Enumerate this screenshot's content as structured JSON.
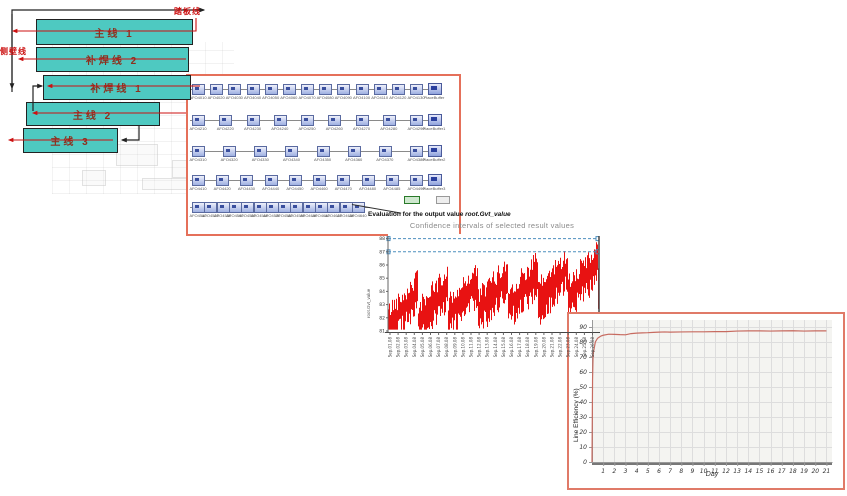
{
  "layout_diagram": {
    "label_top_right": "踏板线",
    "label_left": "侧壁线",
    "bar_color": "#4ec9c1",
    "arrow_red": "#cc1111",
    "arrow_black": "#222222",
    "bars": [
      {
        "label": "主线 1"
      },
      {
        "label": "补焊线 2"
      },
      {
        "label": "补焊线 1"
      },
      {
        "label": "主线 2"
      },
      {
        "label": "主线 3"
      }
    ]
  },
  "simulation_panel": {
    "border_color": "#e5705a",
    "evaluation_prefix": "Evaluation for the output value ",
    "evaluation_value": "root.Gvt_value",
    "rows": [
      {
        "stations": [
          "AFO4010",
          "AFO4020",
          "AFO4030",
          "AFO4040",
          "AFO4050",
          "AFO4060",
          "AFO4070",
          "AFO4080",
          "AFO4090",
          "AFO4100",
          "AFO4110",
          "AFO4120",
          "AFO4130"
        ],
        "buffer": "PlaceBuffer"
      },
      {
        "stations": [
          "AFO4210",
          "AFO4220",
          "AFO4230",
          "AFO4240",
          "AFO4250",
          "AFO4260",
          "AFO4270",
          "AFO4280",
          "AFO4290"
        ],
        "buffer": "PlaceBuffer1"
      },
      {
        "stations": [
          "AFO4310",
          "AFO4320",
          "AFO4330",
          "AFO4340",
          "AFO4350",
          "AFO4360",
          "AFO4370",
          "AFO4380"
        ],
        "buffer": "PlaceBuffer2"
      },
      {
        "stations": [
          "AFO4410",
          "AFO4420",
          "AFO4430",
          "AFO4440",
          "AFO4450",
          "AFO4460",
          "AFO4470",
          "AFO4480",
          "AFO4485",
          "AFO4490"
        ],
        "buffer": "PlaceBuffer3"
      },
      {
        "stations": [
          "AFO4510",
          "AFO4520",
          "AFO4530",
          "AFO4540",
          "AFO4550",
          "AFO4560",
          "AFO4570",
          "AFO4580",
          "AFO4590",
          "AFO4600",
          "AFO4610",
          "AFO4620",
          "AFO4630",
          "AFO4640"
        ],
        "buffer": null
      }
    ]
  },
  "chart_data": [
    {
      "type": "line",
      "title": "Confidence intervals of selected result values",
      "ylabel": "root.Gvt_value",
      "xlabel": "",
      "ylim": [
        81,
        88.5
      ],
      "yticks": [
        81,
        82,
        83,
        84,
        85,
        86,
        87,
        88
      ],
      "confidence_bounds": {
        "lower": 87,
        "upper": 88,
        "style": "dashed",
        "color": "#4d8fbe"
      },
      "series": [
        {
          "name": "root.Gvt_value",
          "color": "#e81212",
          "trend": {
            "start_mean": 82.6,
            "end_mean": 85.2,
            "cycle_period_days": 3,
            "cycle_amplitude": 2.2,
            "noise_band_low": 1.6,
            "noise_band_high": 1.4,
            "span_days": 21
          }
        }
      ],
      "x_tick_labels": [
        "Sep.01.08",
        "Sep.02.08",
        "Sep.03.08",
        "Sep.04.08",
        "Sep.05.08",
        "Sep.06.08",
        "Sep.07.08",
        "Sep.08.08",
        "Sep.09.08",
        "Sep.10.08",
        "Sep.11.08",
        "Sep.12.08",
        "Sep.13.08",
        "Sep.14.08",
        "Sep.15.08",
        "Sep.16.08",
        "Sep.17.08",
        "Sep.18.08",
        "Sep.19.08",
        "Sep.20.08",
        "Sep.21.08",
        "Sep.22.08",
        "Sep.23.08",
        "Sep.24.08",
        "Sep.25.08",
        "Sep.26.08"
      ],
      "grid": false,
      "legend": "none"
    },
    {
      "type": "line",
      "title": "",
      "xlabel": "Day",
      "ylabel": "Line Efficiency (%)",
      "xlim": [
        0,
        21.5
      ],
      "ylim": [
        0,
        95
      ],
      "xticks": [
        1,
        2,
        3,
        4,
        5,
        6,
        7,
        8,
        9,
        10,
        11,
        12,
        13,
        14,
        15,
        16,
        17,
        18,
        19,
        20,
        21
      ],
      "yticks": [
        0,
        10,
        20,
        30,
        40,
        50,
        60,
        70,
        80,
        90
      ],
      "grid": true,
      "plot_bg": "#f4f4f1",
      "border_color": "#e07a68",
      "series": [
        {
          "name": "Line Efficiency",
          "color": "#c76b60",
          "points": [
            [
              0,
              0
            ],
            [
              0.05,
              55
            ],
            [
              0.1,
              72
            ],
            [
              0.2,
              76
            ],
            [
              0.3,
              80
            ],
            [
              0.5,
              82.5
            ],
            [
              0.8,
              84
            ],
            [
              1,
              84.5
            ],
            [
              1.5,
              85.2
            ],
            [
              2,
              85.1
            ],
            [
              2.5,
              84.9
            ],
            [
              3,
              84.8
            ],
            [
              3.5,
              85.6
            ],
            [
              4,
              85.9
            ],
            [
              4.5,
              86.1
            ],
            [
              5,
              86.2
            ],
            [
              5.5,
              86.4
            ],
            [
              6,
              86.6
            ],
            [
              6.5,
              86.7
            ],
            [
              7,
              86.6
            ],
            [
              8,
              86.7
            ],
            [
              9,
              86.8
            ],
            [
              10,
              86.8
            ],
            [
              11,
              86.9
            ],
            [
              12,
              86.9
            ],
            [
              13,
              87.3
            ],
            [
              14,
              87.4
            ],
            [
              15,
              87.4
            ],
            [
              16,
              87.3
            ],
            [
              17,
              87.4
            ],
            [
              18,
              87.5
            ],
            [
              19,
              87.3
            ],
            [
              20,
              87.4
            ],
            [
              21,
              87.4
            ]
          ]
        }
      ],
      "legend": "none"
    }
  ]
}
